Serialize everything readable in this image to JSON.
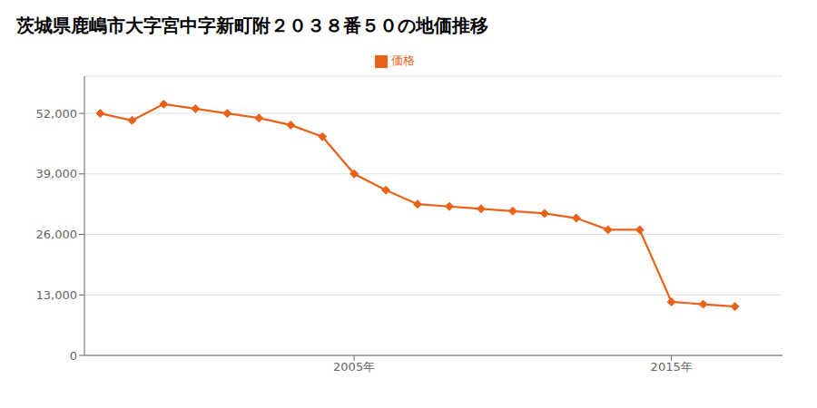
{
  "chart_data": {
    "type": "line",
    "title": "茨城県鹿嶋市大字宮中字新町附２０３８番５０の地価推移",
    "x": [
      1997,
      1998,
      1999,
      2000,
      2001,
      2002,
      2003,
      2004,
      2005,
      2006,
      2007,
      2008,
      2009,
      2010,
      2011,
      2012,
      2013,
      2014,
      2015,
      2016,
      2017
    ],
    "series": [
      {
        "name": "価格",
        "color": "#e8621a",
        "marker": "diamond",
        "values": [
          52000,
          50500,
          54000,
          53000,
          52000,
          51000,
          49500,
          47000,
          39000,
          35500,
          32500,
          32000,
          31500,
          31000,
          30500,
          29500,
          27000,
          27000,
          11500,
          11000,
          10500
        ]
      }
    ],
    "xlim": [
      1996.5,
      2018.5
    ],
    "xticks": [
      {
        "value": 2005,
        "label": "2005年"
      },
      {
        "value": 2015,
        "label": "2015年"
      }
    ],
    "ylim": [
      0,
      60000
    ],
    "yticks": [
      0,
      {
        "value": 13000,
        "label": "13,000"
      },
      {
        "value": 26000,
        "label": "26,000"
      },
      {
        "value": 39000,
        "label": "39,000"
      },
      {
        "value": 52000,
        "label": "52,000"
      }
    ],
    "grid": "y",
    "legend": "top"
  }
}
